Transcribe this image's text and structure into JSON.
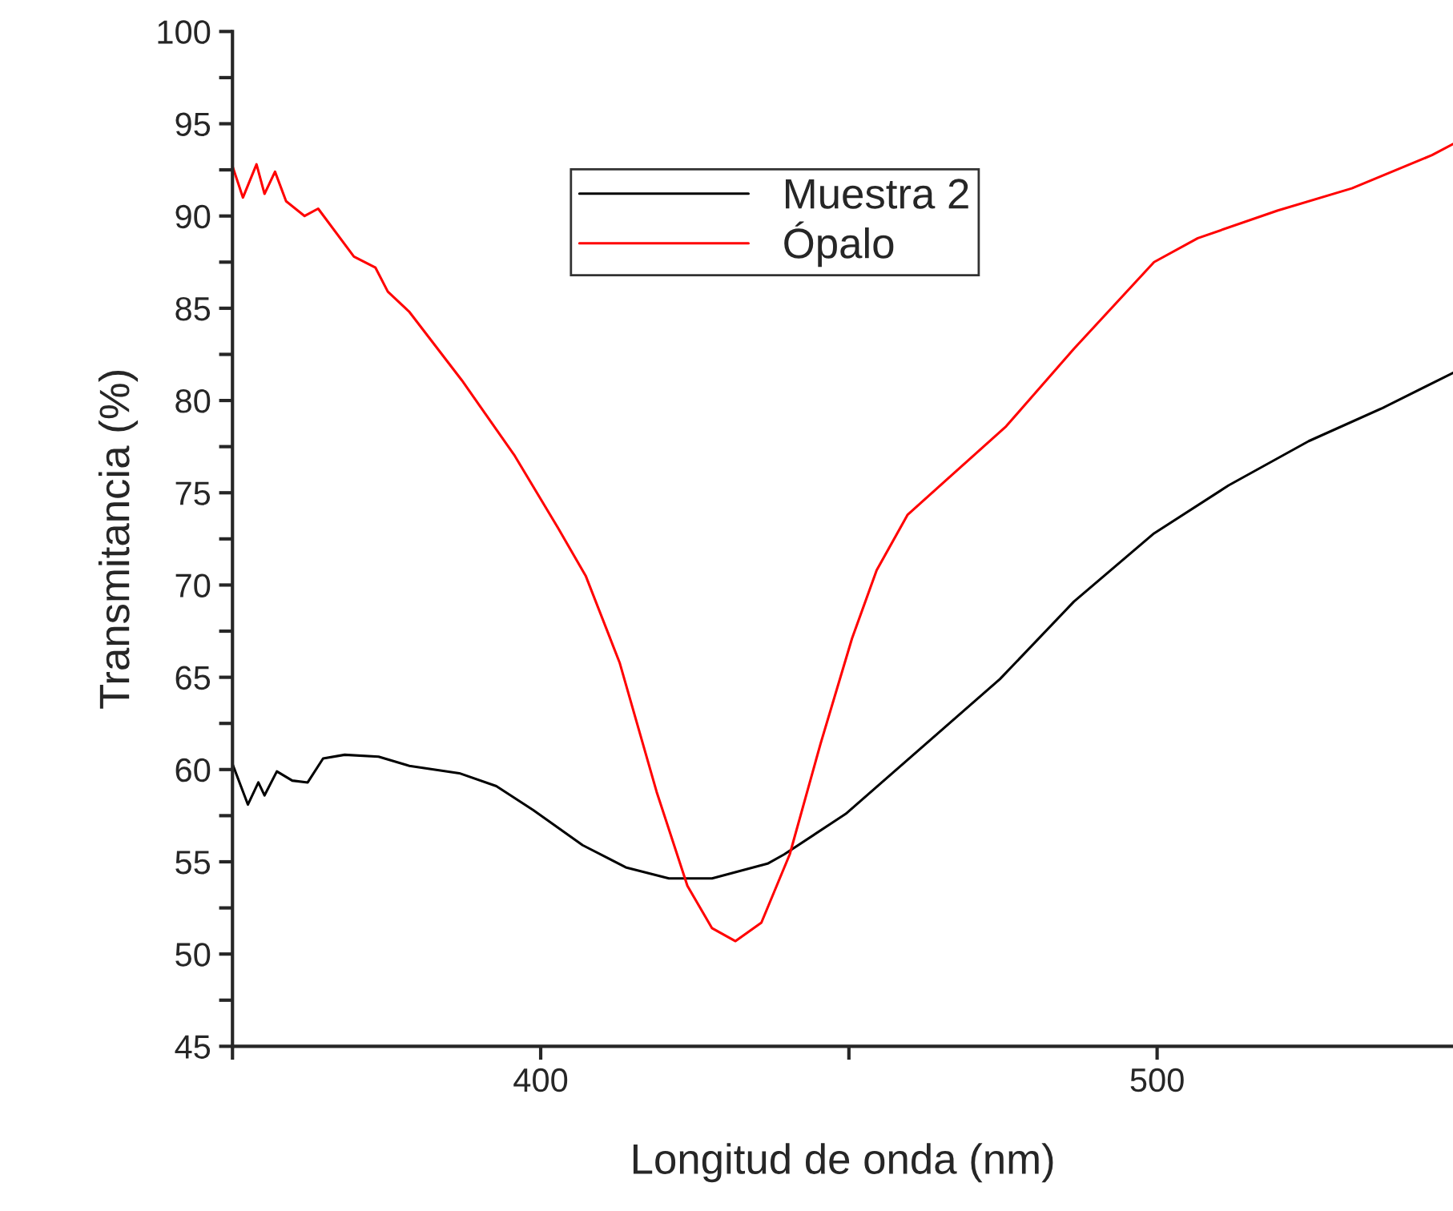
{
  "chart_data": {
    "type": "line",
    "xlabel": "Longitud de onda (nm)",
    "ylabel": "Transmitancia (%)",
    "xlim": [
      350,
      548
    ],
    "ylim": [
      45,
      100
    ],
    "xticks": [
      {
        "value": 350,
        "label": null
      },
      400,
      {
        "value": 450,
        "label": null
      },
      500
    ],
    "yticks": [
      45,
      {
        "value": 47.5,
        "label": null
      },
      50,
      {
        "value": 52.5,
        "label": null
      },
      55,
      {
        "value": 57.5,
        "label": null
      },
      60,
      {
        "value": 62.5,
        "label": null
      },
      65,
      {
        "value": 67.5,
        "label": null
      },
      70,
      {
        "value": 72.5,
        "label": null
      },
      75,
      {
        "value": 77.5,
        "label": null
      },
      80,
      {
        "value": 82.5,
        "label": null
      },
      85,
      {
        "value": 87.5,
        "label": null
      },
      90,
      {
        "value": 92.5,
        "label": null
      },
      95,
      {
        "value": 97.5,
        "label": null
      },
      100
    ],
    "grid": false,
    "legend": "top center",
    "marker": "none",
    "line_style": "solid",
    "series": [
      {
        "name": "Muestra 2",
        "color": "#000000",
        "x": [
          350,
          352.5,
          354.2,
          355.2,
          357.2,
          359.7,
          362.2,
          364.7,
          368.2,
          373.7,
          378.7,
          386.8,
          392.8,
          398.8,
          406.8,
          413.8,
          420.8,
          427.8,
          436.8,
          439.5,
          449.5,
          461.5,
          474.5,
          486.5,
          499.5,
          511.6,
          524.6,
          536.6,
          548
        ],
        "values": [
          60.3,
          58.1,
          59.3,
          58.6,
          59.9,
          59.4,
          59.3,
          60.6,
          60.8,
          60.7,
          60.2,
          59.8,
          59.1,
          57.8,
          55.9,
          54.7,
          54.1,
          54.1,
          54.9,
          55.4,
          57.6,
          61.1,
          64.9,
          69.1,
          72.8,
          75.4,
          77.8,
          79.6,
          81.5
        ]
      },
      {
        "name": "Ópalo",
        "color": "#ff0000",
        "x": [
          350,
          351.7,
          353.9,
          355.2,
          356.9,
          358.7,
          361.7,
          363.9,
          369.7,
          373.2,
          375.2,
          378.7,
          387.2,
          395.8,
          402.8,
          407.3,
          412.8,
          418.8,
          423.8,
          427.8,
          431.6,
          435.8,
          440.4,
          445.4,
          450.5,
          454.5,
          459.5,
          465.5,
          475.5,
          486.5,
          499.5,
          506.6,
          519.6,
          531.6,
          544.6,
          548
        ],
        "values": [
          92.7,
          91.0,
          92.8,
          91.2,
          92.4,
          90.8,
          90.0,
          90.4,
          87.8,
          87.2,
          85.9,
          84.8,
          81.1,
          77.0,
          73.1,
          70.5,
          65.8,
          58.8,
          53.7,
          51.4,
          50.7,
          51.7,
          55.4,
          61.4,
          67.1,
          70.8,
          73.8,
          75.6,
          78.6,
          82.8,
          87.5,
          88.8,
          90.3,
          91.5,
          93.3,
          93.9
        ]
      }
    ]
  }
}
